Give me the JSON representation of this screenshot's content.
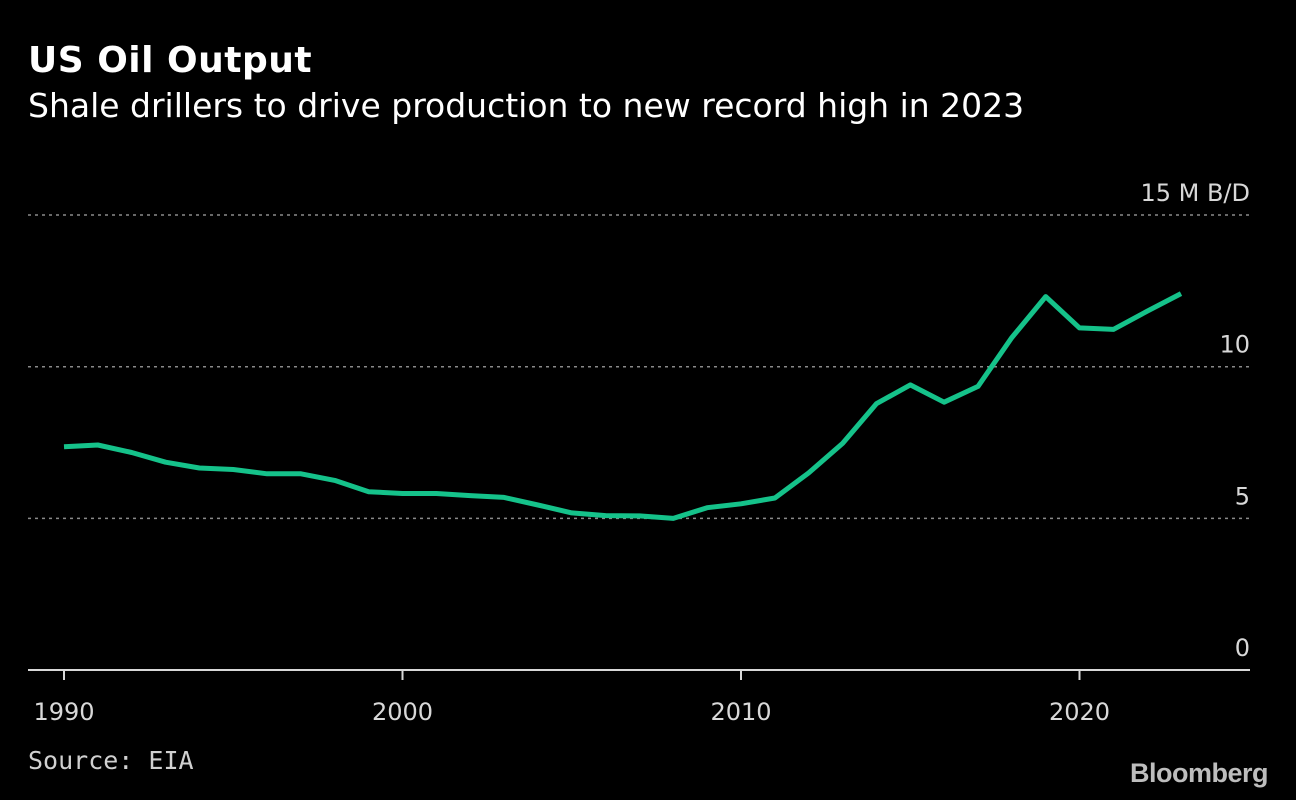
{
  "chart_data": {
    "type": "line",
    "title": "US Oil Output",
    "subtitle": "Shale drillers to drive production to new record high in 2023",
    "unit": "M B/D",
    "y_ticks": [
      {
        "value": 15,
        "label": "15 M B/D"
      },
      {
        "value": 10,
        "label": "10"
      },
      {
        "value": 5,
        "label": "5"
      },
      {
        "value": 0,
        "label": "0"
      }
    ],
    "x_ticks": [
      {
        "value": 1990,
        "label": "1990"
      },
      {
        "value": 2000,
        "label": "2000"
      },
      {
        "value": 2010,
        "label": "2010"
      },
      {
        "value": 2020,
        "label": "2020"
      }
    ],
    "xlim": [
      1989,
      2025
    ],
    "ylim": [
      0,
      15
    ],
    "grid": true,
    "series": [
      {
        "color": "#15c28a",
        "x": [
          1990,
          1991,
          1992,
          1993,
          1994,
          1995,
          1996,
          1997,
          1998,
          1999,
          2000,
          2001,
          2002,
          2003,
          2004,
          2005,
          2006,
          2007,
          2008,
          2009,
          2010,
          2011,
          2012,
          2013,
          2014,
          2015,
          2016,
          2017,
          2018,
          2019,
          2020,
          2021,
          2022,
          2023
        ],
        "y": [
          7.36,
          7.42,
          7.17,
          6.85,
          6.66,
          6.61,
          6.47,
          6.47,
          6.25,
          5.88,
          5.82,
          5.82,
          5.75,
          5.69,
          5.44,
          5.18,
          5.09,
          5.08,
          5.0,
          5.35,
          5.48,
          5.67,
          6.5,
          7.47,
          8.78,
          9.4,
          8.83,
          9.35,
          10.96,
          12.31,
          11.28,
          11.23,
          11.83,
          12.41
        ]
      }
    ]
  },
  "source": "Source: EIA",
  "logo": "Bloomberg",
  "colors": {
    "background": "#000000",
    "line": "#15c28a",
    "grid": "#8a8a8a",
    "axis": "#d8d8d8",
    "tick_text": "#d8d8d8"
  }
}
